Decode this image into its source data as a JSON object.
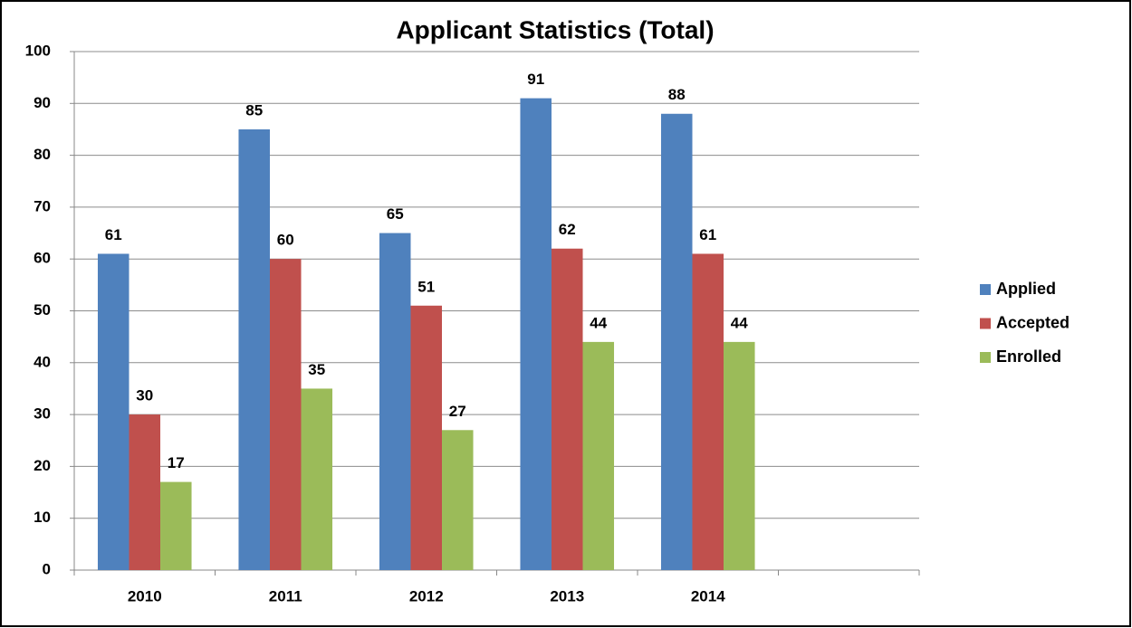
{
  "chart_data": {
    "type": "bar",
    "title": "Applicant Statistics (Total)",
    "categories": [
      "2010",
      "2011",
      "2012",
      "2013",
      "2014",
      null
    ],
    "series": [
      {
        "name": "Applied",
        "color": "#4f81bd",
        "values": [
          61,
          85,
          65,
          91,
          88,
          null
        ]
      },
      {
        "name": "Accepted",
        "color": "#c0504d",
        "values": [
          30,
          60,
          51,
          62,
          61,
          null
        ]
      },
      {
        "name": "Enrolled",
        "color": "#9bbb59",
        "values": [
          17,
          35,
          27,
          44,
          44,
          null
        ]
      }
    ],
    "ylim": [
      0,
      100
    ],
    "yticks": [
      0,
      10,
      20,
      30,
      40,
      50,
      60,
      70,
      80,
      90,
      100
    ],
    "grid": true,
    "legend": "right"
  }
}
